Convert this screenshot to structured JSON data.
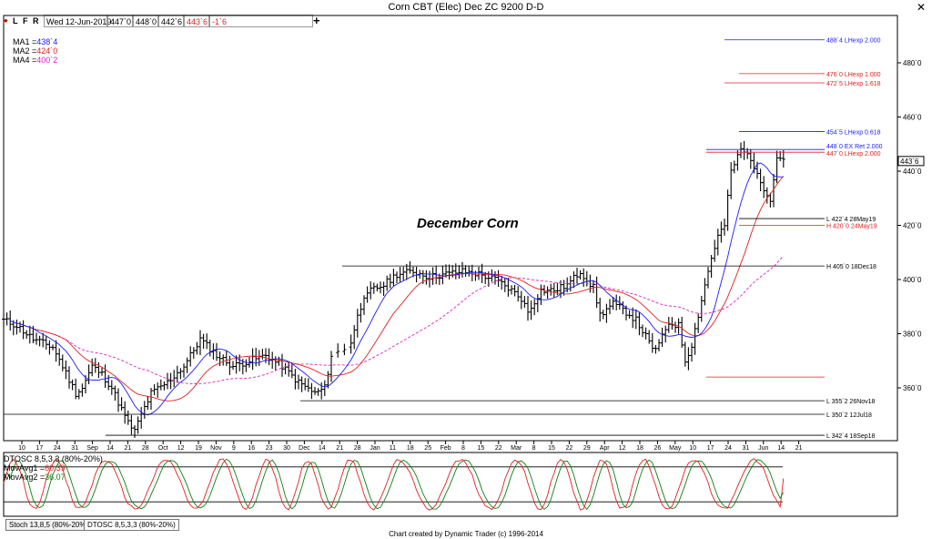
{
  "window": {
    "title": "Corn CBT (Elec) Dec ZC 9200 D-D"
  },
  "toolbar": {
    "letters": [
      "L",
      "F",
      "R"
    ],
    "date": "Wed 12-Jun-2019",
    "open": "447`0",
    "high": "448`0",
    "low": "442`6",
    "close": "443`6",
    "change": "-1`6",
    "crosshair_icon": "crosshair-icon"
  },
  "legend": [
    {
      "label": "MA1 =",
      "value": "438`4",
      "color": "#1a1aff"
    },
    {
      "label": "MA2 =",
      "value": "424`0",
      "color": "#e02020"
    },
    {
      "label": "MA4 =",
      "value": "400`2",
      "color": "#e020c0"
    }
  ],
  "tabs": [
    {
      "label": "Stoch 13,8,5 (80%-20%)",
      "active": false
    },
    {
      "label": "DTOSC 8,5,3,3 (80%-20%)",
      "active": true
    }
  ],
  "footer": {
    "credit": "Chart created by Dynamic Trader  (c)  1996-2014"
  },
  "chart_data": {
    "type": "bar",
    "subtype": "ohlc",
    "annotation": "December Corn",
    "y_axis": {
      "range": [
        342,
        490
      ],
      "ticks": [
        "480`0",
        "460`0",
        "440`0",
        "420`0",
        "400`0",
        "380`0",
        "360`0"
      ],
      "current_price": "443`6"
    },
    "x_axis": {
      "tick_labels": [
        "10",
        "17",
        "24",
        "31",
        "Sep",
        "14",
        "21",
        "28",
        "Oct",
        "12",
        "19",
        "Nov",
        "9",
        "16",
        "23",
        "30",
        "Dec",
        "14",
        "21",
        "28",
        "Jan",
        "11",
        "18",
        "25",
        "Feb",
        "8",
        "15",
        "22",
        "Mar",
        "8",
        "15",
        "22",
        "29",
        "Apr",
        "12",
        "18",
        "26",
        "May",
        "10",
        "17",
        "24",
        "31",
        "Jun",
        "14",
        "21"
      ]
    },
    "levels": [
      {
        "label": "488`4 LHexp 2.000",
        "price": 488.5,
        "color": "#1a1aff"
      },
      {
        "label": "476`0 LHexp 1.000",
        "price": 476.0,
        "color": "#e02020"
      },
      {
        "label": "472`5 LHexp 1.618",
        "price": 472.6,
        "color": "#e02020"
      },
      {
        "label": "454`5 LHexp 0.618",
        "price": 454.6,
        "color": "#1a1aff"
      },
      {
        "label": "448`0 EX Ret 2.000",
        "price": 448.0,
        "color": "#1a1aff"
      },
      {
        "label": "447`0 LHexp 2.000",
        "price": 447.0,
        "color": "#e02020"
      },
      {
        "label": "L 422`4 28May19",
        "price": 422.5,
        "color": "#000000"
      },
      {
        "label": "H 420`0 24May19",
        "price": 420.0,
        "color": "#e02020"
      },
      {
        "label": "H 405`0 18Dec18",
        "price": 405.0,
        "color": "#000000"
      },
      {
        "label": "L 355`2 26Nov18",
        "price": 355.25,
        "color": "#000000"
      },
      {
        "label": "L 350`2 12Jul18",
        "price": 350.25,
        "color": "#000000"
      },
      {
        "label": "L 342`4 18Sep18",
        "price": 342.5,
        "color": "#000000"
      }
    ],
    "series_notes": {
      "price_series": "ohlc bars",
      "moving_averages": [
        "MA1",
        "MA2",
        "MA4"
      ]
    },
    "anchors": [
      [
        0,
        385
      ],
      [
        4,
        383
      ],
      [
        9,
        378
      ],
      [
        15,
        375
      ],
      [
        18,
        368
      ],
      [
        22,
        358
      ],
      [
        24,
        360
      ],
      [
        27,
        368
      ],
      [
        30,
        365
      ],
      [
        33,
        360
      ],
      [
        36,
        352
      ],
      [
        38,
        347
      ],
      [
        40,
        344
      ],
      [
        42,
        350
      ],
      [
        45,
        358
      ],
      [
        50,
        362
      ],
      [
        55,
        368
      ],
      [
        60,
        378
      ],
      [
        65,
        372
      ],
      [
        70,
        368
      ],
      [
        75,
        370
      ],
      [
        80,
        372
      ],
      [
        85,
        368
      ],
      [
        90,
        362
      ],
      [
        95,
        358
      ],
      [
        98,
        360
      ],
      [
        100,
        372
      ],
      [
        103,
        374
      ],
      [
        106,
        376
      ],
      [
        108,
        388
      ],
      [
        112,
        396
      ],
      [
        116,
        398
      ],
      [
        120,
        402
      ],
      [
        125,
        403
      ],
      [
        130,
        401
      ],
      [
        135,
        402
      ],
      [
        140,
        403
      ],
      [
        145,
        402
      ],
      [
        150,
        400
      ],
      [
        155,
        396
      ],
      [
        158,
        393
      ],
      [
        160,
        388
      ],
      [
        164,
        396
      ],
      [
        168,
        396
      ],
      [
        172,
        398
      ],
      [
        176,
        403
      ],
      [
        180,
        397
      ],
      [
        182,
        387
      ],
      [
        186,
        391
      ],
      [
        190,
        388
      ],
      [
        193,
        385
      ],
      [
        196,
        379
      ],
      [
        198,
        374
      ],
      [
        200,
        376
      ],
      [
        203,
        384
      ],
      [
        206,
        383
      ],
      [
        208,
        370
      ],
      [
        210,
        376
      ],
      [
        214,
        398
      ],
      [
        216,
        408
      ],
      [
        218,
        416
      ],
      [
        220,
        420
      ],
      [
        222,
        440
      ],
      [
        225,
        448
      ],
      [
        228,
        445
      ],
      [
        230,
        438
      ],
      [
        232,
        434
      ],
      [
        234,
        430
      ],
      [
        236,
        445
      ],
      [
        238,
        445
      ]
    ],
    "oscillator": {
      "name": "DTOSC 8,5,3,3 (80%-20%)",
      "bands": [
        80,
        20
      ],
      "series": [
        {
          "name": "MovAvg1",
          "value": 60.39,
          "color": "#e02020"
        },
        {
          "name": "MovAvg2",
          "value": 36.07,
          "color": "#108010"
        }
      ],
      "label_prefix": "DTOSC 8,5,3,3 (80%-20%)",
      "mavg1_label": "MovAvg1 =",
      "mavg2_label": "MovAvg2 ="
    }
  }
}
